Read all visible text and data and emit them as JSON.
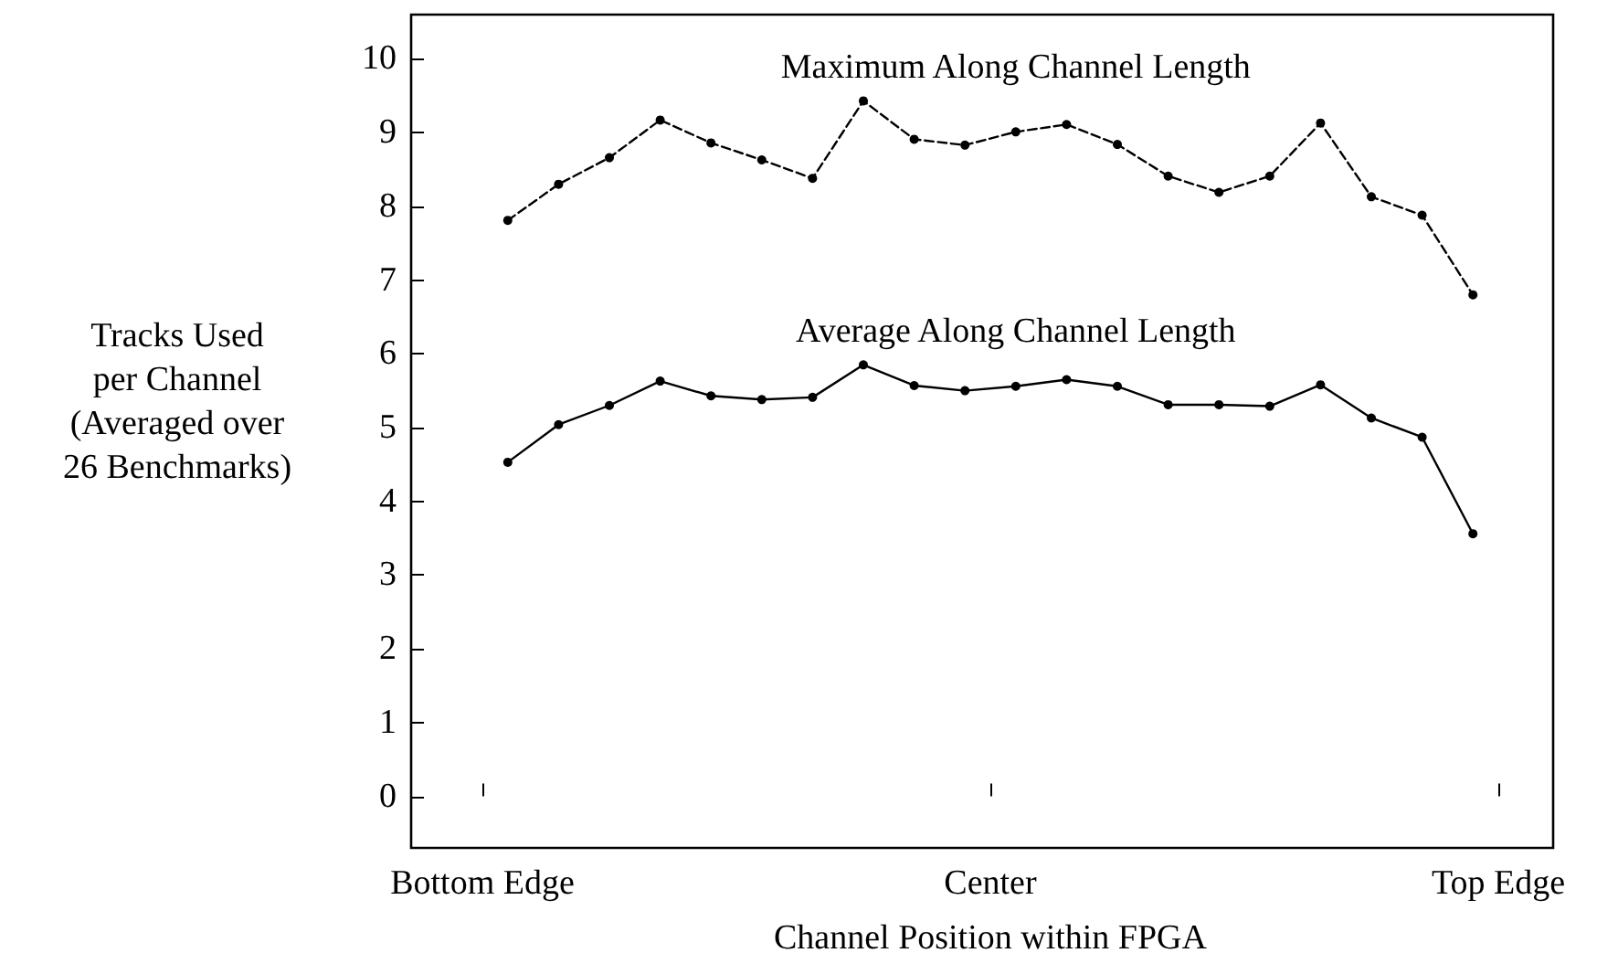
{
  "chart_data": {
    "type": "line",
    "xlabel": "Channel Position within FPGA",
    "ylabel": "Tracks Used\nper Channel\n(Averaged over\n26 Benchmarks)",
    "categories": [
      null,
      null,
      null,
      null,
      null,
      null,
      null,
      null,
      null,
      null,
      null,
      null,
      null,
      null,
      null,
      null,
      null,
      null,
      null,
      null
    ],
    "series": [
      {
        "color": "#000000",
        "line_style": "dashed",
        "values": [
          7.81,
          8.3,
          8.66,
          9.17,
          8.86,
          8.63,
          8.38,
          9.43,
          8.91,
          8.83,
          9.01,
          9.11,
          8.84,
          8.41,
          8.19,
          8.41,
          9.13,
          8.13,
          7.88,
          6.8
        ]
      },
      {
        "color": "#000000",
        "line_style": "solid",
        "values": [
          4.53,
          5.04,
          5.3,
          5.63,
          5.43,
          5.38,
          5.41,
          5.85,
          5.57,
          5.5,
          5.56,
          5.65,
          5.56,
          5.31,
          5.31,
          5.29,
          5.58,
          5.13,
          4.87,
          3.56
        ]
      }
    ],
    "ylim": [
      -0.7,
      10.6
    ],
    "yticks": [
      0,
      1,
      2,
      3,
      4,
      5,
      6,
      7,
      8,
      9,
      10
    ],
    "marker": "circle",
    "grid": false,
    "annotations": [
      "Maximum Along Channel Length",
      "Average Along Channel Length",
      "Bottom Edge",
      "Center",
      "Top Edge"
    ]
  }
}
